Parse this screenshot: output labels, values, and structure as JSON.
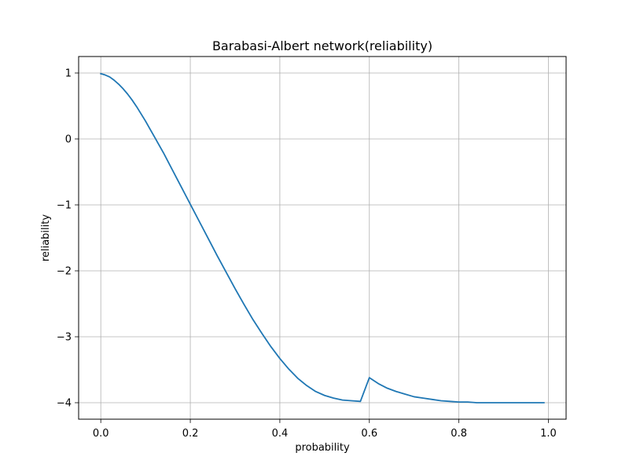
{
  "chart_data": {
    "type": "line",
    "title": "Barabasi-Albert network(reliability)",
    "xlabel": "probability",
    "ylabel": "reliability",
    "xlim": [
      -0.0495,
      1.0395
    ],
    "ylim": [
      -4.25,
      1.25
    ],
    "xticks": [
      0.0,
      0.2,
      0.4,
      0.6,
      0.8,
      1.0
    ],
    "xtick_labels": [
      "0.0",
      "0.2",
      "0.4",
      "0.6",
      "0.8",
      "1.0"
    ],
    "yticks": [
      1,
      0,
      -1,
      -2,
      -3,
      -4
    ],
    "ytick_labels": [
      "1",
      "0",
      "−1",
      "−2",
      "−3",
      "−4"
    ],
    "grid": true,
    "legend": "none",
    "series": [
      {
        "color": "#1f77b4",
        "x": [
          0.0,
          0.01,
          0.02,
          0.03,
          0.04,
          0.05,
          0.06,
          0.07,
          0.08,
          0.09,
          0.1,
          0.11,
          0.12,
          0.13,
          0.14,
          0.15,
          0.16,
          0.17,
          0.18,
          0.19,
          0.2,
          0.22,
          0.24,
          0.26,
          0.28,
          0.3,
          0.32,
          0.34,
          0.36,
          0.38,
          0.4,
          0.42,
          0.44,
          0.46,
          0.48,
          0.5,
          0.52,
          0.54,
          0.56,
          0.58,
          0.6,
          0.62,
          0.64,
          0.66,
          0.68,
          0.7,
          0.72,
          0.74,
          0.76,
          0.78,
          0.8,
          0.82,
          0.84,
          0.86,
          0.88,
          0.9,
          0.92,
          0.94,
          0.96,
          0.99
        ],
        "y": [
          0.99,
          0.97,
          0.94,
          0.89,
          0.83,
          0.76,
          0.68,
          0.59,
          0.49,
          0.38,
          0.27,
          0.15,
          0.03,
          -0.09,
          -0.21,
          -0.34,
          -0.47,
          -0.6,
          -0.73,
          -0.86,
          -0.99,
          -1.25,
          -1.51,
          -1.77,
          -2.02,
          -2.27,
          -2.51,
          -2.74,
          -2.95,
          -3.15,
          -3.33,
          -3.49,
          -3.63,
          -3.74,
          -3.83,
          -3.89,
          -3.93,
          -3.96,
          -3.97,
          -3.98,
          -3.62,
          -3.71,
          -3.78,
          -3.83,
          -3.87,
          -3.91,
          -3.93,
          -3.95,
          -3.97,
          -3.98,
          -3.99,
          -3.99,
          -4.0,
          -4.0,
          -4.0,
          -4.0,
          -4.0,
          -4.0,
          -4.0,
          -4.0
        ]
      }
    ]
  }
}
